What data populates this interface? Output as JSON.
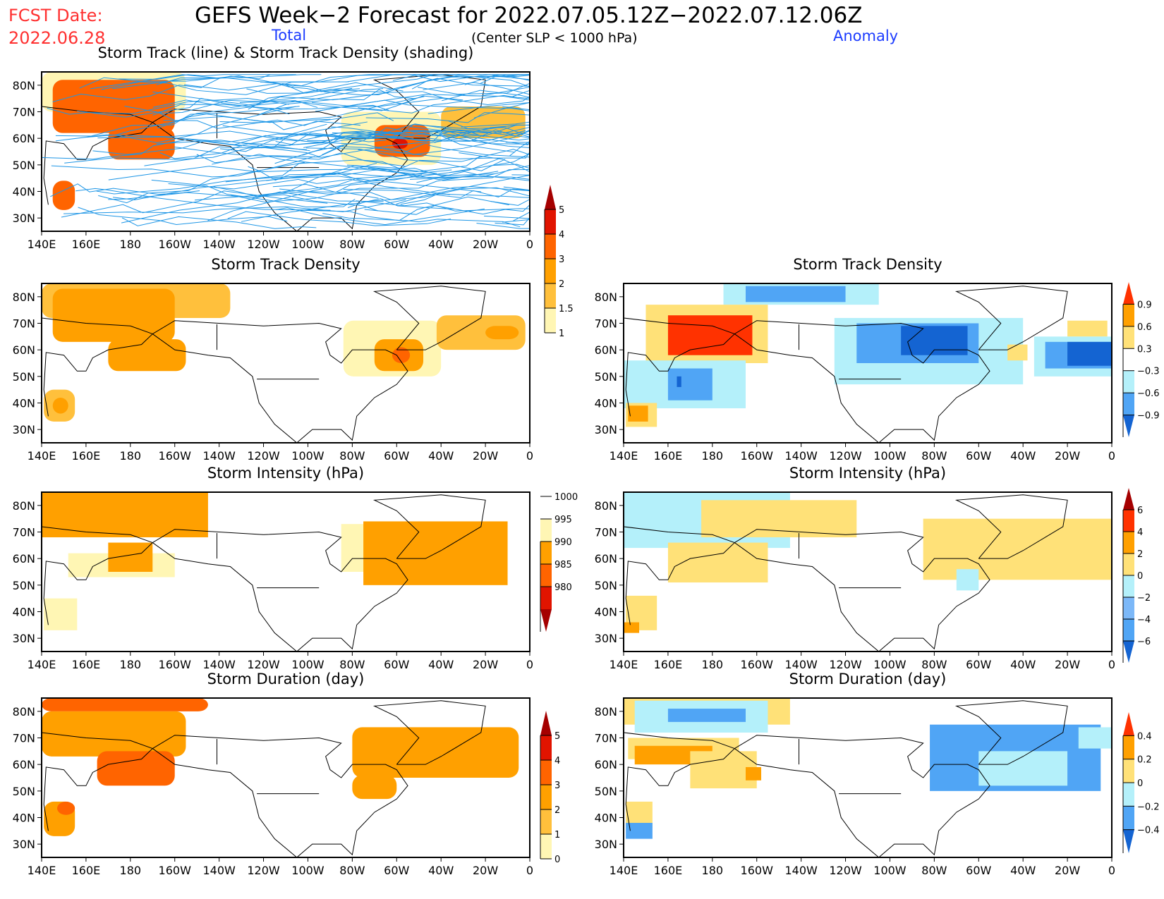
{
  "header": {
    "fcst_label": "FCST Date:",
    "fcst_date": "2022.06.28",
    "title": "GEFS Week−2 Forecast for 2022.07.05.12Z−2022.07.12.06Z",
    "total_label": "Total",
    "criterion": "(Center SLP < 1000 hPa)",
    "anomaly_label": "Anomaly"
  },
  "colors": {
    "title_red": "#ff3030",
    "label_blue": "#1c3cff",
    "track_line": "#1e96e6",
    "warm": [
      "#fff6b4",
      "#ffc03c",
      "#ffa000",
      "#ff6400",
      "#e11400",
      "#a50000"
    ],
    "div": [
      "#1464d2",
      "#50a5f5",
      "#b4f0fa",
      "#ffffff",
      "#ffe178",
      "#ffa000",
      "#ff3200",
      "#a50000"
    ]
  },
  "axes": {
    "lon_ticks": [
      "140E",
      "160E",
      "180",
      "160W",
      "140W",
      "120W",
      "100W",
      "80W",
      "60W",
      "40W",
      "20W",
      "0"
    ],
    "lat_ticks": [
      "80N",
      "70N",
      "60N",
      "50N",
      "40N",
      "30N"
    ],
    "lon_range_deg_east": [
      140,
      360
    ],
    "lat_range": [
      25,
      85
    ]
  },
  "chart_data": [
    {
      "id": "total-track",
      "type": "heatmap",
      "title": "Storm Track (line) & Storm Track Density (shading)",
      "column": "Total",
      "overlay": "storm tracks (lines)",
      "colorbar": {
        "levels": [
          1,
          1.5,
          2,
          3,
          4,
          5
        ],
        "labels": [
          "1",
          "1.5",
          "2",
          "3",
          "4",
          "5"
        ],
        "extend": "max"
      },
      "regions": [
        {
          "lon": [
            140,
            205
          ],
          "lat": [
            70,
            85
          ],
          "level": 1
        },
        {
          "lon": [
            145,
            200
          ],
          "lat": [
            62,
            82
          ],
          "level": 3
        },
        {
          "lon": [
            170,
            200
          ],
          "lat": [
            52,
            64
          ],
          "level": 3
        },
        {
          "lon": [
            145,
            155
          ],
          "lat": [
            33,
            44
          ],
          "level": 3
        },
        {
          "lon": [
            275,
            320
          ],
          "lat": [
            50,
            70
          ],
          "level": 1
        },
        {
          "lon": [
            290,
            315
          ],
          "lat": [
            53,
            65
          ],
          "level": 3
        },
        {
          "lon": [
            298,
            305
          ],
          "lat": [
            56,
            60
          ],
          "level": 4
        },
        {
          "lon": [
            320,
            358
          ],
          "lat": [
            60,
            72
          ],
          "level": 1.5
        }
      ]
    },
    {
      "id": "total-density",
      "type": "heatmap",
      "title": "Storm Track Density",
      "column": "Total",
      "colorbar": "shared with total-track",
      "regions": [
        {
          "lon": [
            140,
            225
          ],
          "lat": [
            72,
            85
          ],
          "level": 1.5
        },
        {
          "lon": [
            145,
            200
          ],
          "lat": [
            63,
            83
          ],
          "level": 2
        },
        {
          "lon": [
            170,
            205
          ],
          "lat": [
            52,
            64
          ],
          "level": 2
        },
        {
          "lon": [
            141,
            155
          ],
          "lat": [
            33,
            45
          ],
          "level": 1.5
        },
        {
          "lon": [
            145,
            152
          ],
          "lat": [
            36,
            42
          ],
          "level": 2
        },
        {
          "lon": [
            276,
            320
          ],
          "lat": [
            50,
            71
          ],
          "level": 1
        },
        {
          "lon": [
            290,
            312
          ],
          "lat": [
            52,
            64
          ],
          "level": 2
        },
        {
          "lon": [
            298,
            306
          ],
          "lat": [
            55,
            61
          ],
          "level": 3
        },
        {
          "lon": [
            318,
            358
          ],
          "lat": [
            60,
            73
          ],
          "level": 1.5
        },
        {
          "lon": [
            340,
            355
          ],
          "lat": [
            64,
            69
          ],
          "level": 2
        }
      ]
    },
    {
      "id": "anomaly-density",
      "type": "heatmap",
      "title": "Storm Track Density",
      "column": "Anomaly",
      "colorbar": {
        "levels": [
          -0.9,
          -0.6,
          -0.3,
          0.3,
          0.6,
          0.9
        ],
        "labels": [
          "−0.9",
          "−0.6",
          "−0.3",
          "0.3",
          "0.6",
          "0.9"
        ],
        "extend": "both"
      },
      "regions": [
        {
          "lon": [
            185,
            255
          ],
          "lat": [
            77,
            85
          ],
          "level": -0.3
        },
        {
          "lon": [
            195,
            240
          ],
          "lat": [
            78,
            84
          ],
          "level": -0.6
        },
        {
          "lon": [
            150,
            205
          ],
          "lat": [
            55,
            77
          ],
          "level": 0.3
        },
        {
          "lon": [
            160,
            198
          ],
          "lat": [
            58,
            73
          ],
          "level": 0.9
        },
        {
          "lon": [
            140,
            195
          ],
          "lat": [
            38,
            56
          ],
          "level": -0.3
        },
        {
          "lon": [
            160,
            180
          ],
          "lat": [
            41,
            53
          ],
          "level": -0.6
        },
        {
          "lon": [
            164,
            166
          ],
          "lat": [
            46,
            50
          ],
          "level": -0.9
        },
        {
          "lon": [
            141,
            155
          ],
          "lat": [
            31,
            40
          ],
          "level": 0.3
        },
        {
          "lon": [
            142,
            151
          ],
          "lat": [
            33,
            39
          ],
          "level": 0.6
        },
        {
          "lon": [
            235,
            320
          ],
          "lat": [
            47,
            72
          ],
          "level": -0.3
        },
        {
          "lon": [
            245,
            300
          ],
          "lat": [
            55,
            70
          ],
          "level": -0.6
        },
        {
          "lon": [
            265,
            295
          ],
          "lat": [
            58,
            69
          ],
          "level": -0.9
        },
        {
          "lon": [
            340,
            358
          ],
          "lat": [
            65,
            71
          ],
          "level": 0.3
        },
        {
          "lon": [
            313,
            322
          ],
          "lat": [
            56,
            62
          ],
          "level": 0.3
        },
        {
          "lon": [
            325,
            360
          ],
          "lat": [
            50,
            65
          ],
          "level": -0.3
        },
        {
          "lon": [
            330,
            360
          ],
          "lat": [
            53,
            63
          ],
          "level": -0.6
        },
        {
          "lon": [
            340,
            360
          ],
          "lat": [
            54,
            63
          ],
          "level": -0.9
        }
      ]
    },
    {
      "id": "total-intensity",
      "type": "heatmap",
      "title": "Storm Intensity (hPa)",
      "column": "Total",
      "colorbar": {
        "levels": [
          980,
          985,
          990,
          995,
          1000
        ],
        "labels": [
          "980",
          "985",
          "990",
          "995",
          "1000"
        ],
        "extend": "min"
      },
      "regions": [
        {
          "lon": [
            140,
            215
          ],
          "lat": [
            68,
            85
          ],
          "level": 990
        },
        {
          "lon": [
            152,
            200
          ],
          "lat": [
            53,
            62
          ],
          "level": 995
        },
        {
          "lon": [
            170,
            190
          ],
          "lat": [
            55,
            66
          ],
          "level": 990
        },
        {
          "lon": [
            141,
            156
          ],
          "lat": [
            33,
            45
          ],
          "level": 995
        },
        {
          "lon": [
            275,
            290
          ],
          "lat": [
            55,
            73
          ],
          "level": 995
        },
        {
          "lon": [
            285,
            350
          ],
          "lat": [
            50,
            74
          ],
          "level": 990
        }
      ]
    },
    {
      "id": "anomaly-intensity",
      "type": "heatmap",
      "title": "Storm Intensity (hPa)",
      "column": "Anomaly",
      "colorbar": {
        "levels": [
          -6,
          -4,
          -2,
          0,
          2,
          4,
          6
        ],
        "labels": [
          "−6",
          "−4",
          "−2",
          "0",
          "2",
          "4",
          "6"
        ],
        "extend": "both"
      },
      "regions": [
        {
          "lon": [
            140,
            215
          ],
          "lat": [
            64,
            85
          ],
          "level": -2
        },
        {
          "lon": [
            175,
            245
          ],
          "lat": [
            68,
            82
          ],
          "level": 0
        },
        {
          "lon": [
            160,
            205
          ],
          "lat": [
            51,
            66
          ],
          "level": 0
        },
        {
          "lon": [
            141,
            155
          ],
          "lat": [
            33,
            46
          ],
          "level": 0
        },
        {
          "lon": [
            140,
            147
          ],
          "lat": [
            32,
            36
          ],
          "level": 4
        },
        {
          "lon": [
            275,
            360
          ],
          "lat": [
            52,
            75
          ],
          "level": 0
        },
        {
          "lon": [
            277,
            290
          ],
          "lat": [
            62,
            71
          ],
          "level": 2
        },
        {
          "lon": [
            290,
            300
          ],
          "lat": [
            48,
            56
          ],
          "level": -2
        }
      ]
    },
    {
      "id": "total-duration",
      "type": "heatmap",
      "title": "Storm Duration (day)",
      "column": "Total",
      "colorbar": {
        "levels": [
          0,
          1,
          2,
          3,
          4,
          5
        ],
        "labels": [
          "0",
          "1",
          "2",
          "3",
          "4",
          "5"
        ],
        "extend": "max"
      },
      "regions": [
        {
          "lon": [
            140,
            215
          ],
          "lat": [
            80,
            85
          ],
          "level": 3
        },
        {
          "lon": [
            140,
            205
          ],
          "lat": [
            63,
            80
          ],
          "level": 2
        },
        {
          "lon": [
            165,
            200
          ],
          "lat": [
            52,
            65
          ],
          "level": 3
        },
        {
          "lon": [
            141,
            155
          ],
          "lat": [
            33,
            46
          ],
          "level": 2
        },
        {
          "lon": [
            147,
            155
          ],
          "lat": [
            41,
            46
          ],
          "level": 3
        },
        {
          "lon": [
            280,
            355
          ],
          "lat": [
            55,
            74
          ],
          "level": 2
        },
        {
          "lon": [
            280,
            300
          ],
          "lat": [
            47,
            56
          ],
          "level": 2
        }
      ]
    },
    {
      "id": "anomaly-duration",
      "type": "heatmap",
      "title": "Storm Duration (day)",
      "column": "Anomaly",
      "colorbar": {
        "levels": [
          -0.4,
          -0.2,
          0,
          0.2,
          0.4
        ],
        "labels": [
          "−0.4",
          "−0.2",
          "0",
          "0.2",
          "0.4"
        ],
        "extend": "both"
      },
      "regions": [
        {
          "lon": [
            140,
            215
          ],
          "lat": [
            75,
            85
          ],
          "level": 0
        },
        {
          "lon": [
            145,
            205
          ],
          "lat": [
            72,
            84
          ],
          "level": -0.2
        },
        {
          "lon": [
            160,
            195
          ],
          "lat": [
            76,
            81
          ],
          "level": -0.4
        },
        {
          "lon": [
            142,
            192
          ],
          "lat": [
            62,
            70
          ],
          "level": 0.2
        },
        {
          "lon": [
            145,
            180
          ],
          "lat": [
            60,
            67
          ],
          "level": 0.4
        },
        {
          "lon": [
            170,
            200
          ],
          "lat": [
            51,
            65
          ],
          "level": 0.2
        },
        {
          "lon": [
            195,
            202
          ],
          "lat": [
            54,
            59
          ],
          "level": 0.4
        },
        {
          "lon": [
            141,
            153
          ],
          "lat": [
            36,
            46
          ],
          "level": 0
        },
        {
          "lon": [
            141,
            153
          ],
          "lat": [
            32,
            38
          ],
          "level": -0.4
        },
        {
          "lon": [
            278,
            355
          ],
          "lat": [
            50,
            75
          ],
          "level": -0.4
        },
        {
          "lon": [
            300,
            340
          ],
          "lat": [
            52,
            65
          ],
          "level": -0.2
        },
        {
          "lon": [
            345,
            360
          ],
          "lat": [
            66,
            74
          ],
          "level": -0.2
        }
      ]
    }
  ]
}
